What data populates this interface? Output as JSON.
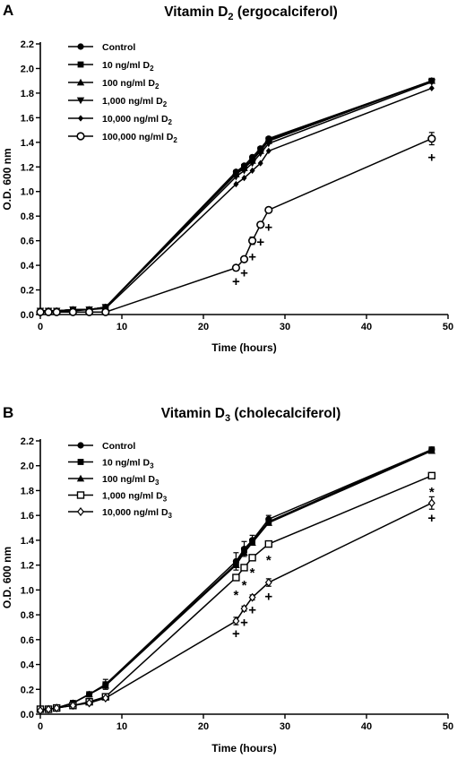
{
  "chart_data": [
    {
      "panel": "A",
      "type": "line",
      "title": "Vitamin D",
      "title_subscript": "2",
      "title_suffix": " (ergocalciferol)",
      "xlabel": "Time (hours)",
      "ylabel": "O.D. 600 nm",
      "xlim": [
        0,
        50
      ],
      "ylim": [
        0,
        2.2
      ],
      "xticks": [
        0,
        10,
        20,
        30,
        40,
        50
      ],
      "yticks": [
        0.0,
        0.2,
        0.4,
        0.6,
        0.8,
        1.0,
        1.2,
        1.4,
        1.6,
        1.8,
        2.0,
        2.2
      ],
      "legend_position": "top-left",
      "series": [
        {
          "name": "Control",
          "marker": "circle-filled",
          "x": [
            0,
            1,
            2,
            4,
            6,
            8,
            24,
            25,
            26,
            27,
            28,
            48
          ],
          "y": [
            0.03,
            0.03,
            0.03,
            0.04,
            0.04,
            0.06,
            1.16,
            1.21,
            1.28,
            1.35,
            1.43,
            1.9
          ]
        },
        {
          "name": "10 ng/ml D2",
          "marker": "square-filled",
          "x": [
            0,
            1,
            2,
            4,
            6,
            8,
            24,
            25,
            26,
            27,
            28,
            48
          ],
          "y": [
            0.03,
            0.03,
            0.03,
            0.04,
            0.04,
            0.06,
            1.15,
            1.2,
            1.26,
            1.34,
            1.42,
            1.9
          ]
        },
        {
          "name": "100 ng/ml D2",
          "marker": "triangle-up-filled",
          "x": [
            0,
            1,
            2,
            4,
            6,
            8,
            24,
            25,
            26,
            27,
            28,
            48
          ],
          "y": [
            0.03,
            0.03,
            0.03,
            0.04,
            0.04,
            0.06,
            1.14,
            1.19,
            1.25,
            1.33,
            1.41,
            1.9
          ]
        },
        {
          "name": "1,000 ng/ml D2",
          "marker": "triangle-down-filled",
          "x": [
            0,
            1,
            2,
            4,
            6,
            8,
            24,
            25,
            26,
            27,
            28,
            48
          ],
          "y": [
            0.03,
            0.03,
            0.03,
            0.04,
            0.04,
            0.06,
            1.12,
            1.17,
            1.23,
            1.31,
            1.39,
            1.89
          ]
        },
        {
          "name": "10,000 ng/ml D2",
          "marker": "diamond-filled",
          "x": [
            0,
            1,
            2,
            4,
            6,
            8,
            24,
            25,
            26,
            27,
            28,
            48
          ],
          "y": [
            0.03,
            0.03,
            0.03,
            0.03,
            0.04,
            0.05,
            1.06,
            1.11,
            1.17,
            1.23,
            1.33,
            1.84
          ]
        },
        {
          "name": "100,000 ng/ml D2",
          "marker": "circle-open",
          "x": [
            0,
            1,
            2,
            4,
            6,
            8,
            24,
            25,
            26,
            27,
            28,
            48
          ],
          "y": [
            0.02,
            0.02,
            0.02,
            0.02,
            0.02,
            0.02,
            0.38,
            0.45,
            0.6,
            0.73,
            0.85,
            1.43
          ],
          "err": [
            0,
            0,
            0,
            0,
            0,
            0,
            0.02,
            0.02,
            0.03,
            0.02,
            0.02,
            0.05
          ]
        }
      ],
      "annotations": [
        {
          "text": "+",
          "x": 24,
          "y": 0.27
        },
        {
          "text": "+",
          "x": 25,
          "y": 0.34
        },
        {
          "text": "+",
          "x": 26,
          "y": 0.47
        },
        {
          "text": "+",
          "x": 27,
          "y": 0.59
        },
        {
          "text": "+",
          "x": 28,
          "y": 0.71
        },
        {
          "text": "+",
          "x": 48,
          "y": 1.28
        }
      ]
    },
    {
      "panel": "B",
      "type": "line",
      "title": "Vitamin D",
      "title_subscript": "3",
      "title_suffix": " (cholecalciferol)",
      "xlabel": "Time (hours)",
      "ylabel": "O.D. 600 nm",
      "xlim": [
        0,
        50
      ],
      "ylim": [
        0,
        2.2
      ],
      "xticks": [
        0,
        10,
        20,
        30,
        40,
        50
      ],
      "yticks": [
        0.0,
        0.2,
        0.4,
        0.6,
        0.8,
        1.0,
        1.2,
        1.4,
        1.6,
        1.8,
        2.0,
        2.2
      ],
      "legend_position": "top-left",
      "series": [
        {
          "name": "Control",
          "marker": "circle-filled",
          "x": [
            0,
            1,
            2,
            4,
            6,
            8,
            24,
            25,
            26,
            28,
            48
          ],
          "y": [
            0.04,
            0.04,
            0.05,
            0.09,
            0.16,
            0.24,
            1.23,
            1.33,
            1.4,
            1.57,
            2.13
          ],
          "err": [
            0.01,
            0.01,
            0.01,
            0.01,
            0.02,
            0.04,
            0.07,
            0.06,
            0.04,
            0.03,
            0.02
          ]
        },
        {
          "name": "10 ng/ml D3",
          "marker": "square-filled",
          "x": [
            0,
            1,
            2,
            4,
            6,
            8,
            24,
            25,
            26,
            28,
            48
          ],
          "y": [
            0.04,
            0.04,
            0.05,
            0.09,
            0.16,
            0.24,
            1.21,
            1.32,
            1.39,
            1.55,
            2.13
          ]
        },
        {
          "name": "100 ng/ml D3",
          "marker": "triangle-up-filled",
          "x": [
            0,
            1,
            2,
            4,
            6,
            8,
            24,
            25,
            26,
            28,
            48
          ],
          "y": [
            0.04,
            0.04,
            0.05,
            0.09,
            0.16,
            0.23,
            1.2,
            1.3,
            1.38,
            1.54,
            2.12
          ]
        },
        {
          "name": "1,000 ng/ml D3",
          "marker": "square-open",
          "x": [
            0,
            1,
            2,
            4,
            6,
            8,
            24,
            25,
            26,
            28,
            48
          ],
          "y": [
            0.04,
            0.04,
            0.05,
            0.07,
            0.1,
            0.14,
            1.1,
            1.18,
            1.26,
            1.37,
            1.92
          ]
        },
        {
          "name": "10,000 ng/ml D3",
          "marker": "diamond-open",
          "x": [
            0,
            1,
            2,
            4,
            6,
            8,
            24,
            25,
            26,
            28,
            48
          ],
          "y": [
            0.03,
            0.04,
            0.05,
            0.07,
            0.09,
            0.13,
            0.75,
            0.85,
            0.94,
            1.06,
            1.7
          ],
          "err": [
            0,
            0,
            0,
            0,
            0.01,
            0.01,
            0.03,
            0.02,
            0.02,
            0.03,
            0.05
          ]
        }
      ],
      "annotations": [
        {
          "text": "*",
          "x": 24,
          "y": 0.96
        },
        {
          "text": "*",
          "x": 25,
          "y": 1.04
        },
        {
          "text": "*",
          "x": 26,
          "y": 1.14
        },
        {
          "text": "*",
          "x": 28,
          "y": 1.24
        },
        {
          "text": "*",
          "x": 48,
          "y": 1.79
        },
        {
          "text": "+",
          "x": 24,
          "y": 0.65
        },
        {
          "text": "+",
          "x": 25,
          "y": 0.74
        },
        {
          "text": "+",
          "x": 26,
          "y": 0.84
        },
        {
          "text": "+",
          "x": 28,
          "y": 0.95
        },
        {
          "text": "+",
          "x": 48,
          "y": 1.58
        }
      ]
    }
  ]
}
